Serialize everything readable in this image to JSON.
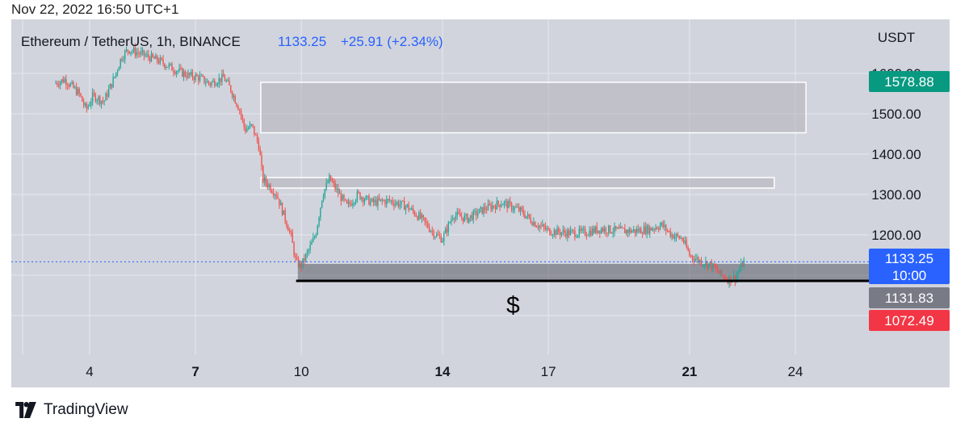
{
  "timestamp": "Nov 22, 2022 16:50 UTC+1",
  "brand": {
    "name": "TradingView",
    "logo_icon": "tradingview-logo-icon"
  },
  "colors": {
    "chart_background": "#d1d4dc",
    "up_candle": "#26a69a",
    "down_candle": "#ef5350",
    "price_line": "#2962ff",
    "label_current": "#2962ff",
    "label_high": "#089981",
    "label_low": "#f23645",
    "label_grey": "#787b86"
  },
  "header": {
    "symbol": "Ethereum / TetherUS, 1h, BINANCE",
    "last_price": "1133.25",
    "change": "+25.91 (+2.34%)"
  },
  "chart_data": {
    "type": "candlestick",
    "title": "Ethereum / TetherUS, 1h, BINANCE",
    "interval": "1h",
    "exchange": "BINANCE",
    "x_tick_labels": [
      "4",
      "7",
      "10",
      "14",
      "17",
      "21",
      "24"
    ],
    "x_tick_bold": [
      "7",
      "14",
      "21"
    ],
    "y_axis_unit": "USDT",
    "y_tick_labels": [
      "1600.00",
      "1500.00",
      "1400.00",
      "1300.00",
      "1200.00"
    ],
    "y_ticks": [
      1600,
      1500,
      1400,
      1300,
      1200
    ],
    "ylim": [
      1000,
      1690
    ],
    "grid": true,
    "close_path": [
      [
        3.0,
        1575
      ],
      [
        3.3,
        1585
      ],
      [
        3.7,
        1550
      ],
      [
        3.9,
        1510
      ],
      [
        4.1,
        1545
      ],
      [
        4.4,
        1530
      ],
      [
        4.7,
        1590
      ],
      [
        4.9,
        1640
      ],
      [
        5.1,
        1660
      ],
      [
        5.4,
        1650
      ],
      [
        5.7,
        1640
      ],
      [
        6.0,
        1630
      ],
      [
        6.4,
        1610
      ],
      [
        6.8,
        1595
      ],
      [
        7.1,
        1590
      ],
      [
        7.4,
        1575
      ],
      [
        7.8,
        1590
      ],
      [
        8.0,
        1560
      ],
      [
        8.25,
        1510
      ],
      [
        8.4,
        1460
      ],
      [
        8.6,
        1470
      ],
      [
        8.8,
        1420
      ],
      [
        8.9,
        1340
      ],
      [
        9.1,
        1320
      ],
      [
        9.3,
        1300
      ],
      [
        9.5,
        1250
      ],
      [
        9.7,
        1200
      ],
      [
        9.85,
        1130
      ],
      [
        10.0,
        1125
      ],
      [
        10.2,
        1160
      ],
      [
        10.4,
        1200
      ],
      [
        10.6,
        1300
      ],
      [
        10.8,
        1340
      ],
      [
        11.0,
        1310
      ],
      [
        11.3,
        1270
      ],
      [
        11.6,
        1300
      ],
      [
        12.0,
        1280
      ],
      [
        12.5,
        1285
      ],
      [
        13.0,
        1270
      ],
      [
        13.4,
        1240
      ],
      [
        13.8,
        1200
      ],
      [
        14.0,
        1190
      ],
      [
        14.3,
        1250
      ],
      [
        14.7,
        1240
      ],
      [
        15.2,
        1265
      ],
      [
        15.7,
        1280
      ],
      [
        16.2,
        1260
      ],
      [
        16.6,
        1230
      ],
      [
        17.0,
        1210
      ],
      [
        17.5,
        1205
      ],
      [
        18.0,
        1205
      ],
      [
        18.5,
        1215
      ],
      [
        19.0,
        1210
      ],
      [
        19.5,
        1210
      ],
      [
        19.9,
        1215
      ],
      [
        20.2,
        1225
      ],
      [
        20.5,
        1200
      ],
      [
        20.8,
        1190
      ],
      [
        21.0,
        1150
      ],
      [
        21.3,
        1135
      ],
      [
        21.6,
        1125
      ],
      [
        21.9,
        1100
      ],
      [
        22.1,
        1090
      ],
      [
        22.3,
        1095
      ],
      [
        22.55,
        1135
      ]
    ],
    "zones": [
      {
        "x_range": [
          8.85,
          24.3
        ],
        "price_range": [
          1453,
          1578
        ]
      },
      {
        "x_range": [
          8.85,
          23.4
        ],
        "price_range": [
          1316,
          1342
        ]
      },
      {
        "x_range": [
          9.9,
          27.0
        ],
        "price_range": [
          1087,
          1128
        ]
      }
    ],
    "support_line": {
      "price": 1086,
      "x_range": [
        9.85,
        27.0
      ],
      "label": "$"
    },
    "current_price_line": 1133.25,
    "price_labels": {
      "high": "1578.88",
      "current": "1133.25",
      "countdown": "10:00",
      "mid": "1131.83",
      "low": "1072.49"
    }
  }
}
